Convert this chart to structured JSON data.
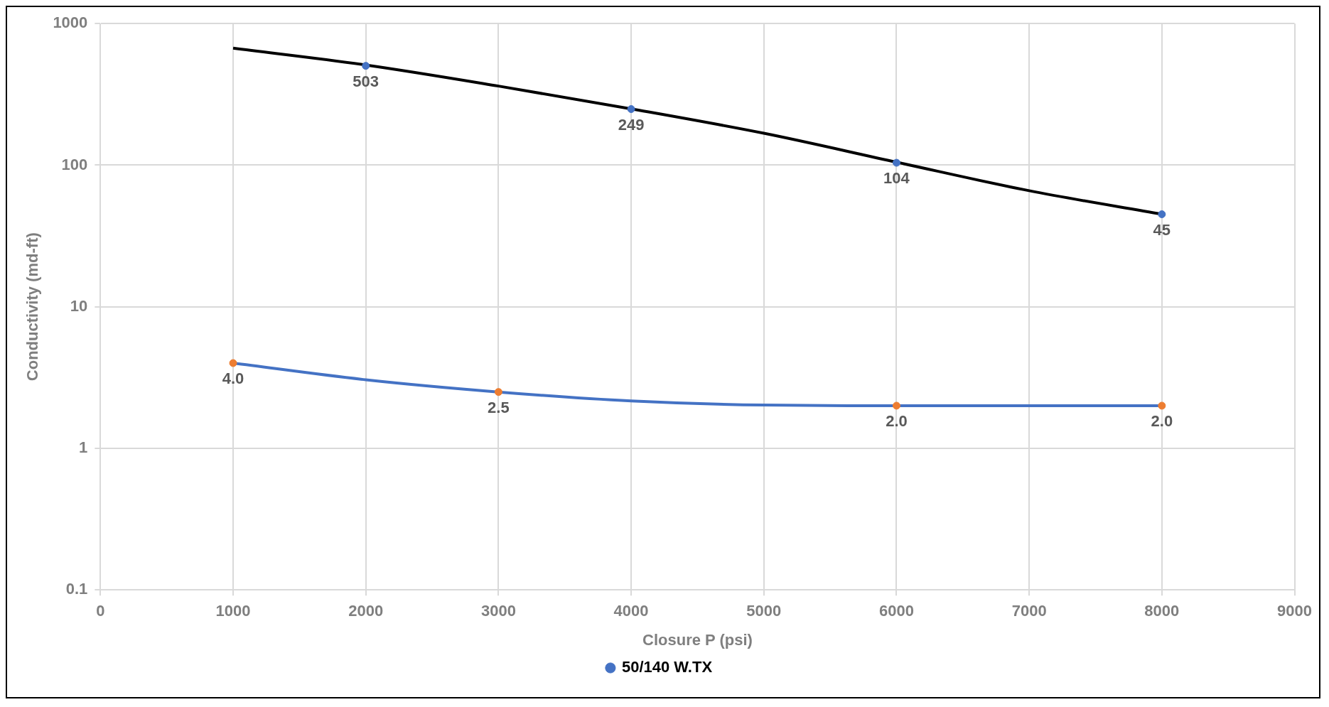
{
  "chart_data": {
    "type": "scatter",
    "xlabel": "Closure P (psi)",
    "ylabel": "Conductivity (md-ft)",
    "log": "y",
    "grid": true,
    "legend": "bottom",
    "marker": "circle",
    "xlim": [
      0,
      9000
    ],
    "xticks": [
      0,
      1000,
      2000,
      3000,
      4000,
      5000,
      6000,
      7000,
      8000,
      9000
    ],
    "ylim": [
      0.1,
      1000
    ],
    "yticks": [
      0.1,
      1,
      10,
      100,
      1000
    ],
    "series": [
      {
        "name": "50/140 W.TX",
        "color": "#4472c4",
        "x": [
          2000,
          4000,
          6000,
          8000
        ],
        "values": [
          503,
          249,
          104,
          45
        ],
        "value_labels": [
          "503",
          "249",
          "104",
          "45"
        ]
      },
      {
        "color": "#ed7d31",
        "x": [
          1000,
          3000,
          6000,
          8000
        ],
        "values": [
          4.0,
          2.5,
          2.0,
          2.0
        ],
        "value_labels": [
          "4.0",
          "2.5",
          "2.0",
          "2.0"
        ]
      },
      {
        "type": "line",
        "color": "#000000",
        "marker": "none",
        "line_style": "solid",
        "x": [
          1000,
          2000,
          3000,
          4000,
          5000,
          6000,
          7000,
          8000
        ],
        "values": [
          670,
          510,
          362,
          250,
          168,
          105,
          66,
          45
        ]
      },
      {
        "type": "line",
        "color": "#4472c4",
        "marker": "none",
        "line_style": "solid",
        "x": [
          1000,
          2000,
          3000,
          4000,
          5000,
          6000,
          7000,
          8000
        ],
        "values": [
          4.0,
          3.05,
          2.5,
          2.16,
          2.02,
          2.0,
          2.0,
          2.0
        ]
      }
    ]
  }
}
